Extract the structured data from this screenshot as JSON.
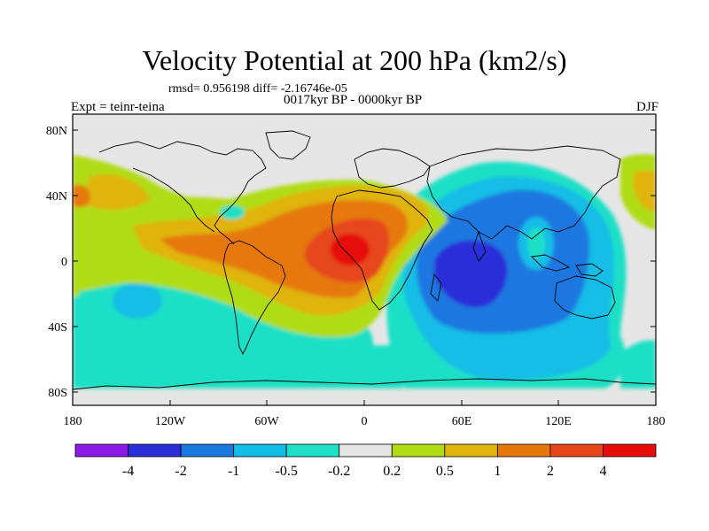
{
  "title": "Velocity Potential at 200 hPa (km2/s)",
  "stats": "rmsd= 0.956198 diff= -2.16746e-05",
  "period": "0017kyr BP - 0000kyr BP",
  "expt": "Expt = teinr-teina",
  "season": "DJF",
  "map": {
    "lat_ticks": [
      "80N",
      "40N",
      "0",
      "40S",
      "80S"
    ],
    "lon_ticks": [
      "180",
      "120W",
      "60W",
      "0",
      "60E",
      "120E",
      "180"
    ]
  },
  "colorbar": {
    "colors": [
      "#8a1ae6",
      "#2a2ed8",
      "#1a78e0",
      "#12bde6",
      "#1ee0c6",
      "#e6e6e6",
      "#b0dc14",
      "#e0b40a",
      "#e6780a",
      "#e6461a",
      "#e60a0a"
    ],
    "labels": [
      "-4",
      "-2",
      "-1",
      "-0.5",
      "-0.2",
      "0.2",
      "0.5",
      "1",
      "2",
      "4"
    ]
  }
}
